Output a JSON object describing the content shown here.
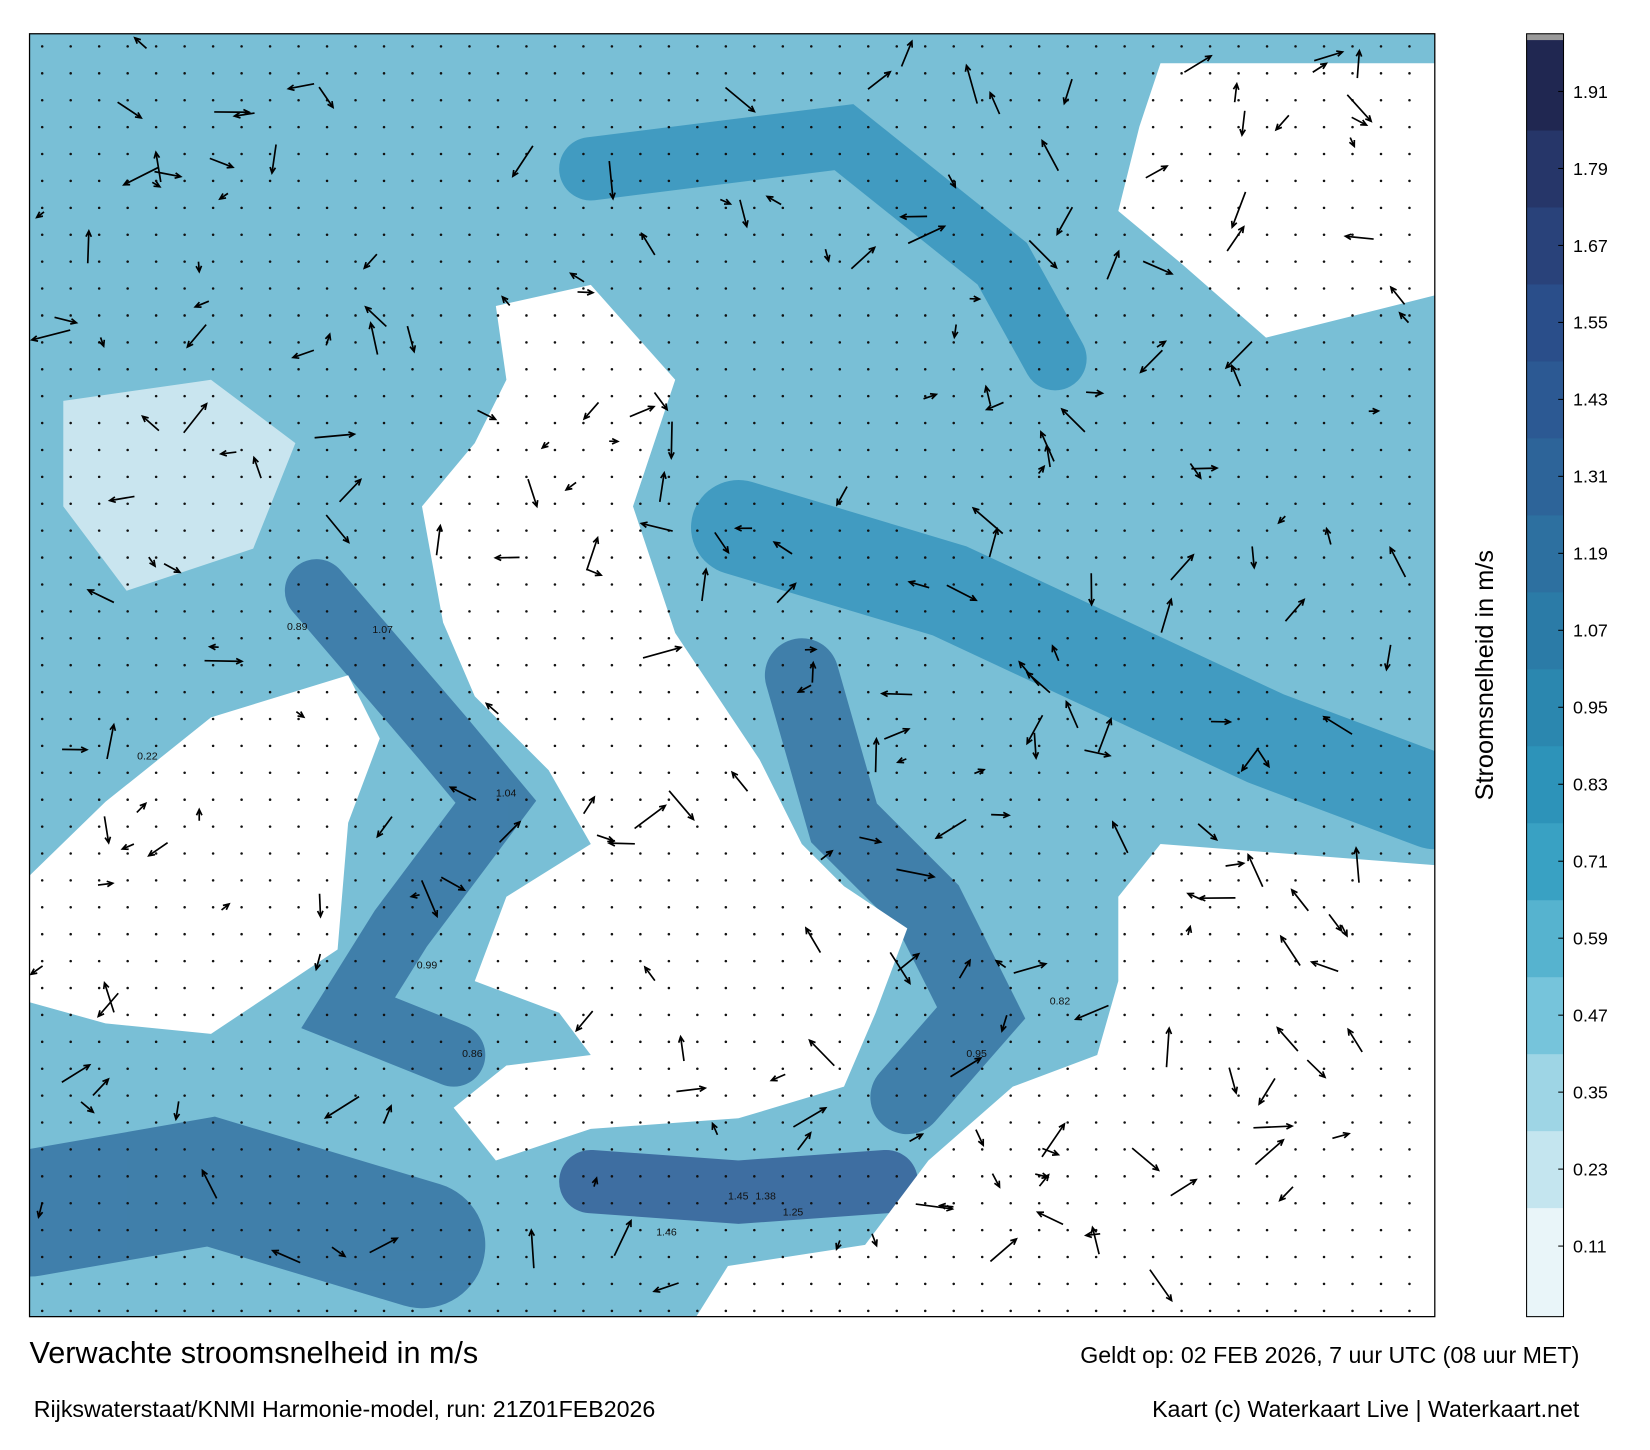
{
  "title": "Verwachte stroomsnelheid in m/s",
  "subtitle": "Rijkswaterstaat/KNMI Harmonie-model, run: 21Z01FEB2026",
  "valid": "Geldt op: 02 FEB 2026, 7 uur UTC (08 uur MET)",
  "credit": "Kaart (c) Waterkaart Live | Waterkaart.net",
  "colorbar": {
    "label": "Stroomsnelheid in m/s",
    "lim": [
      0,
      2
    ],
    "ticks": [
      0.11,
      0.23,
      0.35,
      0.47,
      0.59,
      0.71,
      0.83,
      0.95,
      1.07,
      1.19,
      1.31,
      1.43,
      1.55,
      1.67,
      1.79,
      1.91
    ],
    "colors": [
      "#ffffff",
      "#bfe3ee",
      "#6cc0d8",
      "#2f9bbf",
      "#2a82ab",
      "#2e6a9c",
      "#2b5390",
      "#283a70",
      "#1c1f44"
    ]
  },
  "map_labels": [
    "1.07",
    "0.89",
    "1.04",
    "0.99",
    "0.86",
    "1.45",
    "1.38",
    "1.25",
    "1.46",
    "0.95",
    "0.82",
    "0.22"
  ]
}
